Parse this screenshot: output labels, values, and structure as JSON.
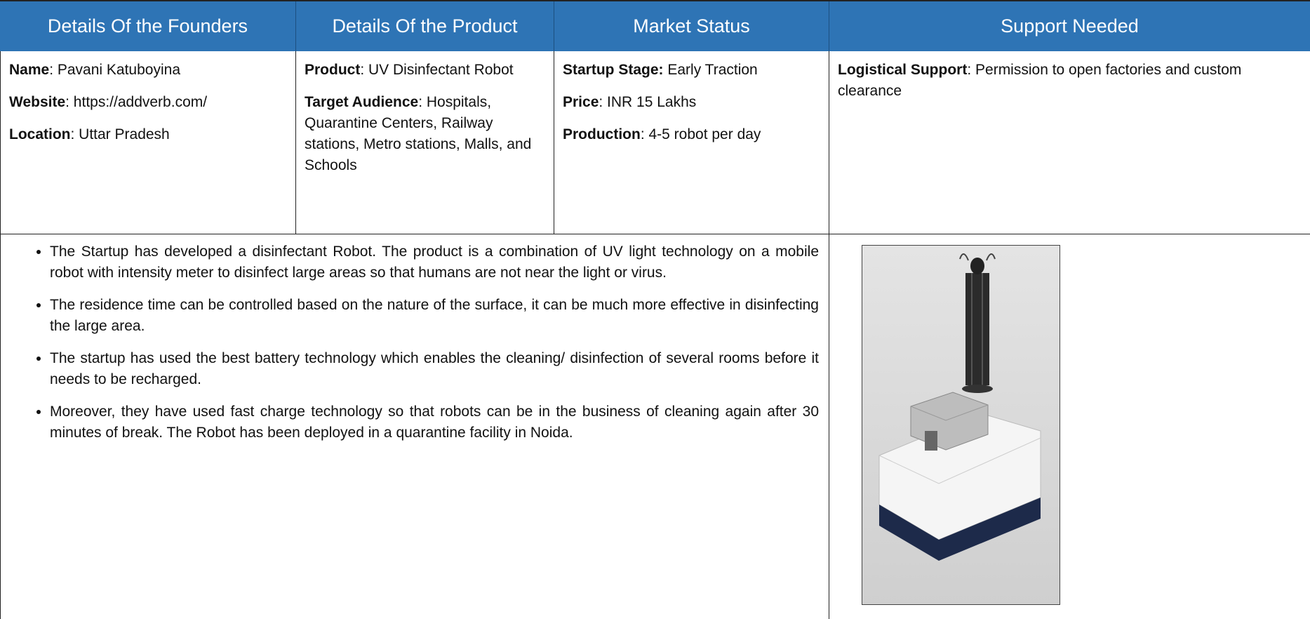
{
  "header": {
    "columns": [
      "Details Of the Founders",
      "Details Of the Product",
      "Market Status",
      "Support Needed"
    ]
  },
  "details": {
    "founders": [
      {
        "label": "Name",
        "value": ": Pavani Katuboyina"
      },
      {
        "label": "Website",
        "value": ": https://addverb.com/"
      },
      {
        "label": "Location",
        "value": ": Uttar Pradesh"
      }
    ],
    "product": [
      {
        "label": "Product",
        "value": ": UV Disinfectant Robot"
      },
      {
        "label": "Target Audience",
        "value": ": Hospitals, Quarantine Centers, Railway stations, Metro stations, Malls, and Schools"
      }
    ],
    "market": [
      {
        "label": "Startup Stage:",
        "value": " Early Traction"
      },
      {
        "label": "Price",
        "value": ": INR 15 Lakhs"
      },
      {
        "label": "Production",
        "value": ": 4-5 robot per day"
      }
    ],
    "support": [
      {
        "label": "Logistical Support",
        "value": ": Permission to open factories and custom clearance"
      }
    ]
  },
  "description": {
    "bullets": [
      "The Startup has developed a disinfectant Robot. The product is a combination of UV light technology on a mobile robot with intensity meter to disinfect large areas so that humans are not near the light or virus.",
      "The residence time can be controlled based on the nature of the surface, it can be much more effective in disinfecting the large area.",
      "The startup has used the best battery technology which enables the cleaning/ disinfection of several rooms before it needs to be recharged.",
      "Moreover, they have used fast charge technology so that robots can be in the business of cleaning again after 30 minutes of break. The Robot has been deployed in a quarantine facility in Noida."
    ]
  }
}
